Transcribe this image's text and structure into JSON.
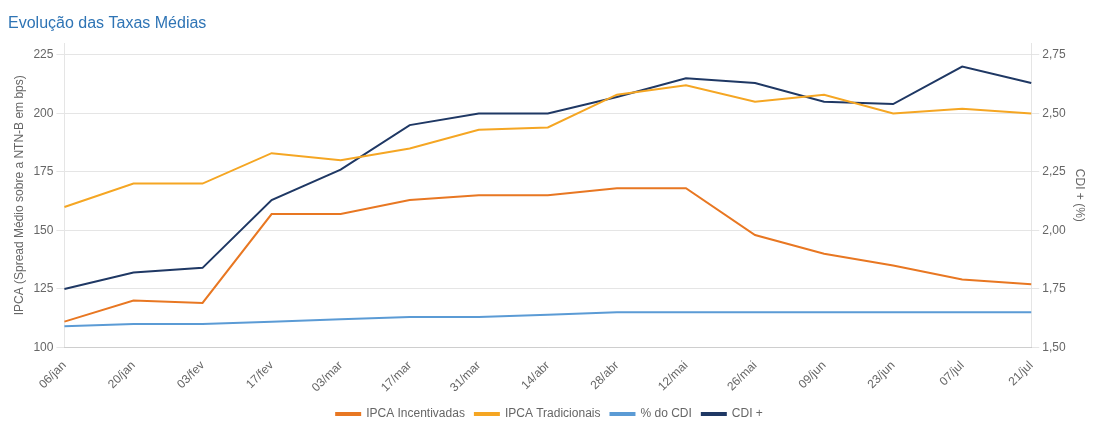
{
  "chart_data": {
    "type": "line",
    "title": "Evolução das Taxas Médias",
    "ylabel": "IPCA (Spread Médio sobre a NTN-B em bps)",
    "y2label": "CDI + (%)",
    "categories": [
      "06/jan",
      "20/jan",
      "03/fev",
      "17/fev",
      "03/mar",
      "17/mar",
      "31/mar",
      "14/abr",
      "28/abr",
      "12/mai",
      "26/mai",
      "09/jun",
      "23/jun",
      "07/jul",
      "21/jul"
    ],
    "series": [
      {
        "name": "IPCA Incentivadas",
        "color": "#E87722",
        "values": [
          111,
          120,
          119,
          157,
          157,
          163,
          165,
          165,
          168,
          168,
          148,
          140,
          135,
          129,
          127
        ]
      },
      {
        "name": "IPCA Tradicionais",
        "color": "#F5A623",
        "values": [
          160,
          170,
          170,
          183,
          180,
          185,
          193,
          194,
          208,
          212,
          205,
          208,
          200,
          202,
          200
        ]
      },
      {
        "name": "% do CDI",
        "color": "#5B9BD5",
        "values": [
          109,
          110,
          110,
          111,
          112,
          113,
          113,
          114,
          115,
          115,
          115,
          115,
          115,
          115,
          115
        ]
      },
      {
        "name": "CDI +",
        "color": "#1F3864",
        "values": [
          125,
          132,
          134,
          163,
          176,
          195,
          200,
          200,
          207,
          215,
          213,
          205,
          204,
          220,
          213
        ]
      }
    ],
    "ylim": [
      100,
      230
    ],
    "yticks": [
      100,
      125,
      150,
      175,
      200,
      225
    ],
    "y2lim": [
      1.5,
      2.8
    ],
    "y2ticks": [
      {
        "value": 1.5,
        "label": "1,50"
      },
      {
        "value": 1.75,
        "label": "1,75"
      },
      {
        "value": 2.0,
        "label": "2,00"
      },
      {
        "value": 2.25,
        "label": "2,25"
      },
      {
        "value": 2.5,
        "label": "2,50"
      },
      {
        "value": 2.75,
        "label": "2,75"
      }
    ],
    "grid": true,
    "legend": "bottom"
  }
}
